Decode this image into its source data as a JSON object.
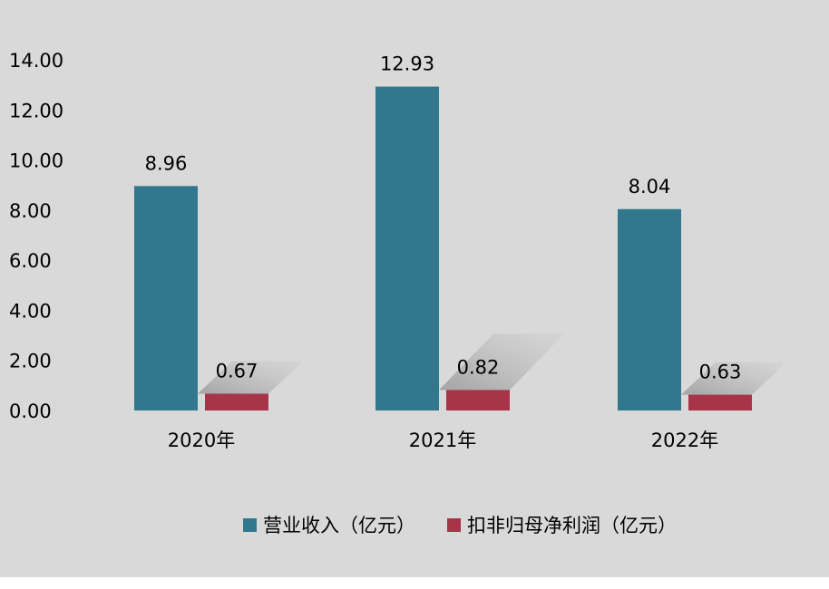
{
  "chart_data": {
    "type": "bar",
    "categories": [
      "2020年",
      "2021年",
      "2022年"
    ],
    "series": [
      {
        "name": "营业收入（亿元）",
        "values": [
          8.96,
          12.93,
          8.04
        ],
        "labels": [
          "8.96",
          "12.93",
          "8.04"
        ],
        "color": "#31788f"
      },
      {
        "name": "扣非归母净利润（亿元）",
        "values": [
          0.67,
          0.82,
          0.63
        ],
        "labels": [
          "0.67",
          "0.82",
          "0.63"
        ],
        "color": "#a8344a"
      }
    ],
    "ylim": [
      0,
      14
    ],
    "yticks": [
      "0.00",
      "2.00",
      "4.00",
      "6.00",
      "8.00",
      "10.00",
      "12.00",
      "14.00"
    ],
    "grid": false,
    "legend": "bottom"
  }
}
